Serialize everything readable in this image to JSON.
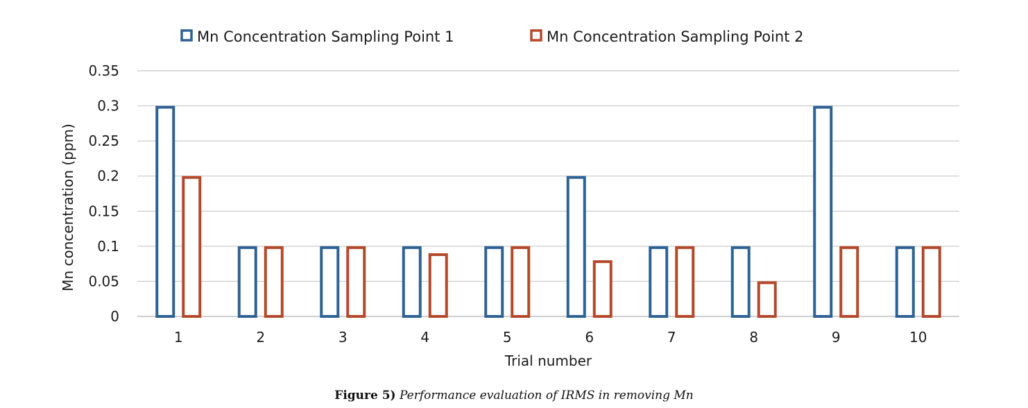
{
  "chart_data": {
    "type": "bar",
    "title": "",
    "xlabel": "Trial number",
    "ylabel": "Mn concentration (ppm)",
    "categories": [
      "1",
      "2",
      "3",
      "4",
      "5",
      "6",
      "7",
      "8",
      "9",
      "10"
    ],
    "series": [
      {
        "name": "Mn Concentration Sampling Point 1",
        "color": "#2e6294",
        "values": [
          0.3,
          0.1,
          0.1,
          0.1,
          0.1,
          0.2,
          0.1,
          0.1,
          0.3,
          0.1
        ]
      },
      {
        "name": "Mn Concentration Sampling Point 2",
        "color": "#b5482a",
        "values": [
          0.2,
          0.1,
          0.1,
          0.09,
          0.1,
          0.08,
          0.1,
          0.05,
          0.1,
          0.1
        ]
      }
    ],
    "ylim": [
      0,
      0.35
    ],
    "yticks": [
      "0",
      "0.05",
      "0.1",
      "0.15",
      "0.2",
      "0.25",
      "0.3",
      "0.35"
    ],
    "grid": true,
    "legend_position": "top",
    "bar_style": "outlined"
  },
  "caption": {
    "label": "Figure 5)",
    "text": "Performance evaluation of IRMS in removing Mn"
  }
}
